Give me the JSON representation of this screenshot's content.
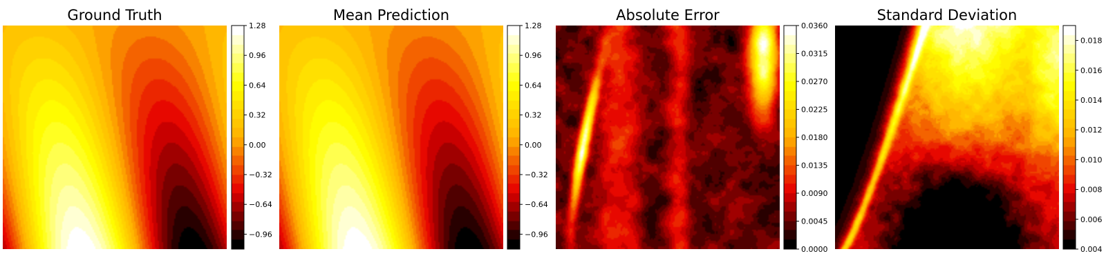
{
  "figure": {
    "colormap": "hot",
    "colormap_stops": [
      "#000000",
      "#e60000",
      "#ffb000",
      "#ffff00",
      "#ffffff"
    ]
  },
  "chart_data": [
    {
      "type": "heatmap",
      "title": "Ground Truth",
      "field": "ground_truth",
      "colorbar": {
        "range": [
          -1.12,
          1.28
        ],
        "ticks": [
          -0.96,
          -0.64,
          -0.32,
          0.0,
          0.32,
          0.64,
          0.96,
          1.28
        ],
        "tick_labels": [
          "−0.96",
          "−0.64",
          "−0.32",
          "0.00",
          "0.32",
          "0.64",
          "0.96",
          "1.28"
        ]
      }
    },
    {
      "type": "heatmap",
      "title": "Mean Prediction",
      "field": "mean_prediction",
      "colorbar": {
        "range": [
          -1.12,
          1.28
        ],
        "ticks": [
          -0.96,
          -0.64,
          -0.32,
          0.0,
          0.32,
          0.64,
          0.96,
          1.28
        ],
        "tick_labels": [
          "−0.96",
          "−0.64",
          "−0.32",
          "0.00",
          "0.32",
          "0.64",
          "0.96",
          "1.28"
        ]
      }
    },
    {
      "type": "heatmap",
      "title": "Absolute Error",
      "field": "absolute_error",
      "colorbar": {
        "range": [
          0.0,
          0.036
        ],
        "ticks": [
          0.0,
          0.0045,
          0.009,
          0.0135,
          0.018,
          0.0225,
          0.027,
          0.0315,
          0.036
        ],
        "tick_labels": [
          "0.0000",
          "0.0045",
          "0.0090",
          "0.0135",
          "0.0180",
          "0.0225",
          "0.0270",
          "0.0315",
          "0.0360"
        ]
      }
    },
    {
      "type": "heatmap",
      "title": "Standard Deviation",
      "field": "standard_deviation",
      "colorbar": {
        "range": [
          0.004,
          0.019
        ],
        "ticks": [
          0.004,
          0.006,
          0.008,
          0.01,
          0.012,
          0.014,
          0.016,
          0.018
        ],
        "tick_labels": [
          "0.004",
          "0.006",
          "0.008",
          "0.010",
          "0.012",
          "0.014",
          "0.016",
          "0.018"
        ]
      }
    }
  ]
}
